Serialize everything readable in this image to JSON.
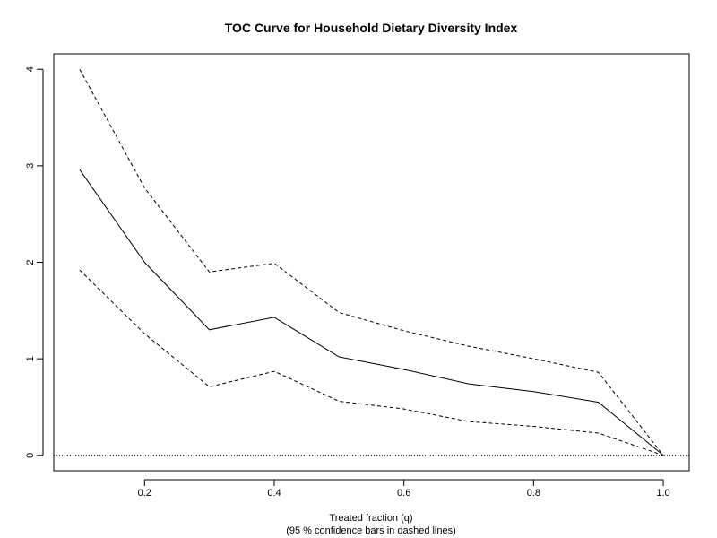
{
  "chart_data": {
    "type": "line",
    "title": "TOC Curve for Household Dietary Diversity Index",
    "xlabel": "Treated fraction (q)",
    "xlabel_note": "(95 % confidence bars in dashed lines)",
    "ylabel": "",
    "x": [
      0.1,
      0.2,
      0.3,
      0.4,
      0.5,
      0.6,
      0.7,
      0.8,
      0.9,
      1.0
    ],
    "series": [
      {
        "name": "",
        "role": "estimate",
        "line_style": "solid",
        "values": [
          2.96,
          2.0,
          1.3,
          1.43,
          1.02,
          0.89,
          0.74,
          0.66,
          0.55,
          0.0
        ]
      },
      {
        "name": "",
        "role": "upper_ci",
        "line_style": "dashed",
        "values": [
          4.0,
          2.77,
          1.9,
          1.99,
          1.48,
          1.29,
          1.13,
          1.0,
          0.86,
          0.0
        ]
      },
      {
        "name": "",
        "role": "lower_ci",
        "line_style": "dashed",
        "values": [
          1.92,
          1.26,
          0.71,
          0.87,
          0.56,
          0.48,
          0.35,
          0.3,
          0.23,
          0.0
        ]
      }
    ],
    "reference_line": {
      "y": 0,
      "line_style": "dotted"
    },
    "xlim": [
      0.06,
      1.04
    ],
    "ylim": [
      -0.16,
      4.16
    ],
    "x_ticks": [
      0.2,
      0.4,
      0.6,
      0.8,
      1.0
    ],
    "x_tick_labels": [
      "0.2",
      "0.4",
      "0.6",
      "0.8",
      "1.0"
    ],
    "y_ticks": [
      0,
      1,
      2,
      3,
      4
    ],
    "y_tick_labels": [
      "0",
      "1",
      "2",
      "3",
      "4"
    ],
    "grid": false,
    "legend": "none",
    "colors": {
      "line": "#000000",
      "axes": "#000000",
      "background": "#ffffff"
    }
  }
}
